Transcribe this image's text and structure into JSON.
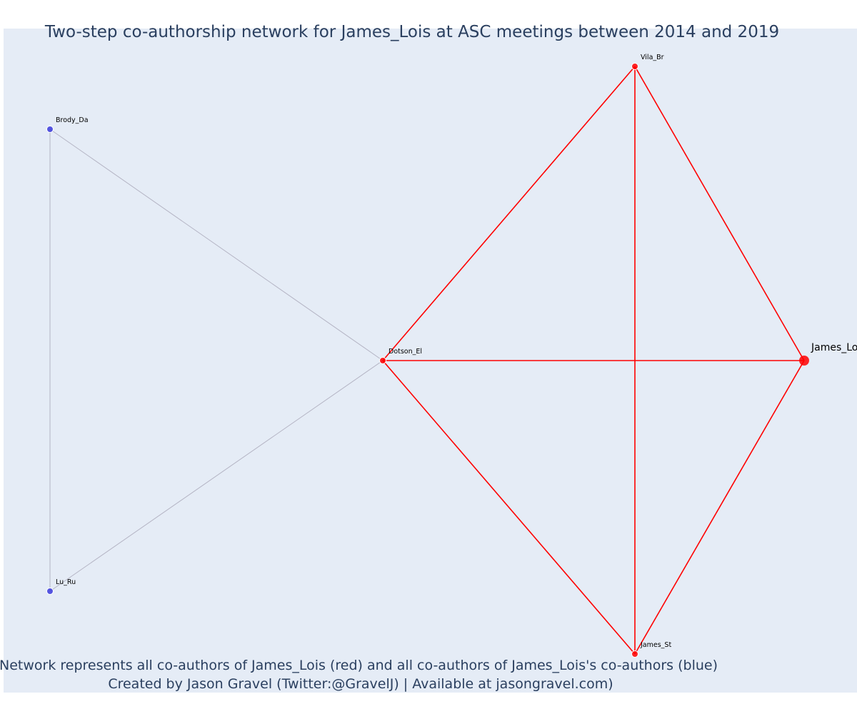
{
  "title": "Two-step co-authorship network for James_Lois at ASC meetings between 2014 and 2019",
  "caption": {
    "line1": "Network represents all co-authors of James_Lois (red) and all co-authors of James_Lois's co-authors (blue)",
    "line2": "Created by Jason Gravel (Twitter:@GravelJ) | Available at jasongravel.com)"
  },
  "colors": {
    "plot_background": "#e5ecf6",
    "page_background": "#ffffff",
    "first_step": "#ff0000",
    "second_step": "#3b3bdc",
    "gray_edge": "#b4b4c4",
    "text": "#2a3f5f"
  },
  "network": {
    "focal_author": "James_Lois",
    "nodes": [
      {
        "id": "James_Lois",
        "label": "James_Lo",
        "group": "first_step",
        "focal": true
      },
      {
        "id": "Vila_Br",
        "label": "Vila_Br",
        "group": "first_step",
        "focal": false
      },
      {
        "id": "Dotson_El",
        "label": "Dotson_El",
        "group": "first_step",
        "focal": false
      },
      {
        "id": "James_St",
        "label": "James_St",
        "group": "first_step",
        "focal": false
      },
      {
        "id": "Brody_Da",
        "label": "Brody_Da",
        "group": "second_step",
        "focal": false
      },
      {
        "id": "Lu_Ru",
        "label": "Lu_Ru",
        "group": "second_step",
        "focal": false
      }
    ],
    "edges": [
      {
        "source": "Vila_Br",
        "target": "Dotson_El",
        "type": "first_step"
      },
      {
        "source": "Vila_Br",
        "target": "James_Lois",
        "type": "first_step"
      },
      {
        "source": "Vila_Br",
        "target": "James_St",
        "type": "first_step"
      },
      {
        "source": "Dotson_El",
        "target": "James_Lois",
        "type": "first_step"
      },
      {
        "source": "Dotson_El",
        "target": "James_St",
        "type": "first_step"
      },
      {
        "source": "James_Lois",
        "target": "James_St",
        "type": "first_step"
      },
      {
        "source": "Brody_Da",
        "target": "Dotson_El",
        "type": "second_step"
      },
      {
        "source": "Brody_Da",
        "target": "Lu_Ru",
        "type": "second_step"
      },
      {
        "source": "Lu_Ru",
        "target": "Dotson_El",
        "type": "second_step"
      }
    ]
  }
}
